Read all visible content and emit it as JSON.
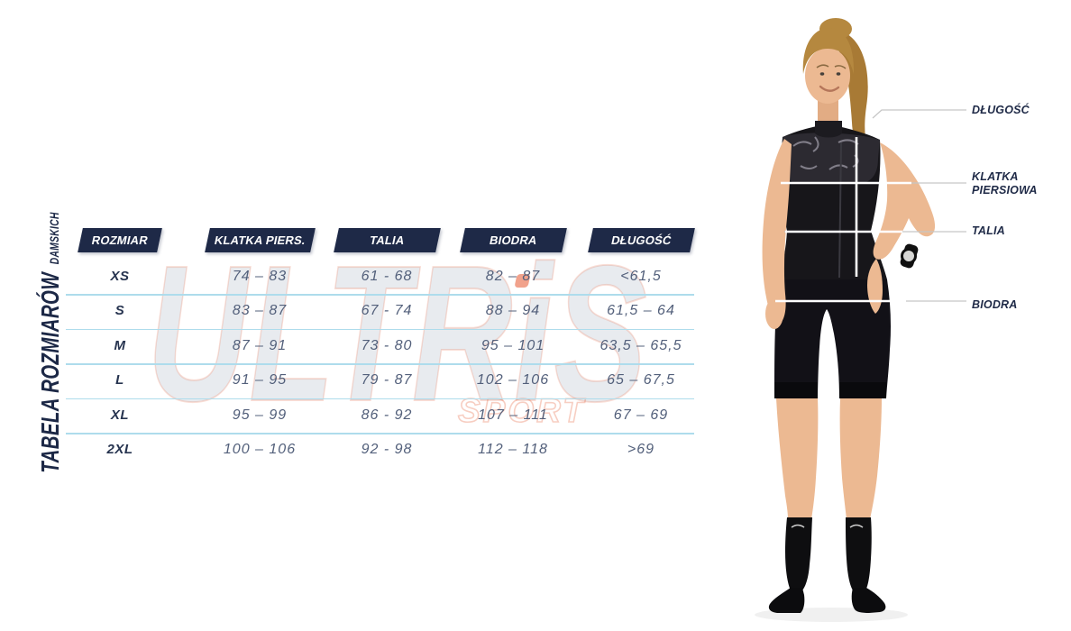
{
  "title": {
    "main": "TABELA ROZMIARÓW",
    "sub": "DAMSKICH"
  },
  "watermark": {
    "brand": "ULTRiS",
    "sub": "SPORT"
  },
  "measurement_labels": {
    "dlugosc": "DŁUGOŚĆ",
    "klatka_line1": "KLATKA",
    "klatka_line2": "PIERSIOWA",
    "talia": "TALIA",
    "biodra": "BIODRA"
  },
  "chart_data": {
    "type": "table",
    "title": "TABELA ROZMIARÓW DAMSKICH",
    "columns": [
      "ROZMIAR",
      "KLATKA PIERS.",
      "TALIA",
      "BIODRA",
      "DŁUGOŚĆ"
    ],
    "rows": [
      [
        "XS",
        "74 – 83",
        "61 - 68",
        "82 – 87",
        "<61,5"
      ],
      [
        "S",
        "83 – 87",
        "67 - 74",
        "88 – 94",
        "61,5 – 64"
      ],
      [
        "M",
        "87 – 91",
        "73 - 80",
        "95 – 101",
        "63,5 – 65,5"
      ],
      [
        "L",
        "91 – 95",
        "79 - 87",
        "102 – 106",
        "65 – 67,5"
      ],
      [
        "XL",
        "95 – 99",
        "86 - 92",
        "107 – 111",
        "67 – 69"
      ],
      [
        "2XL",
        "100 – 106",
        "92 - 98",
        "112 – 118",
        ">69"
      ]
    ]
  },
  "colors": {
    "header_bg": "#1e2947",
    "title_text": "#1c2846",
    "value_text": "#53607b",
    "divider": "#aedcec",
    "accent_red": "#e8502a"
  }
}
